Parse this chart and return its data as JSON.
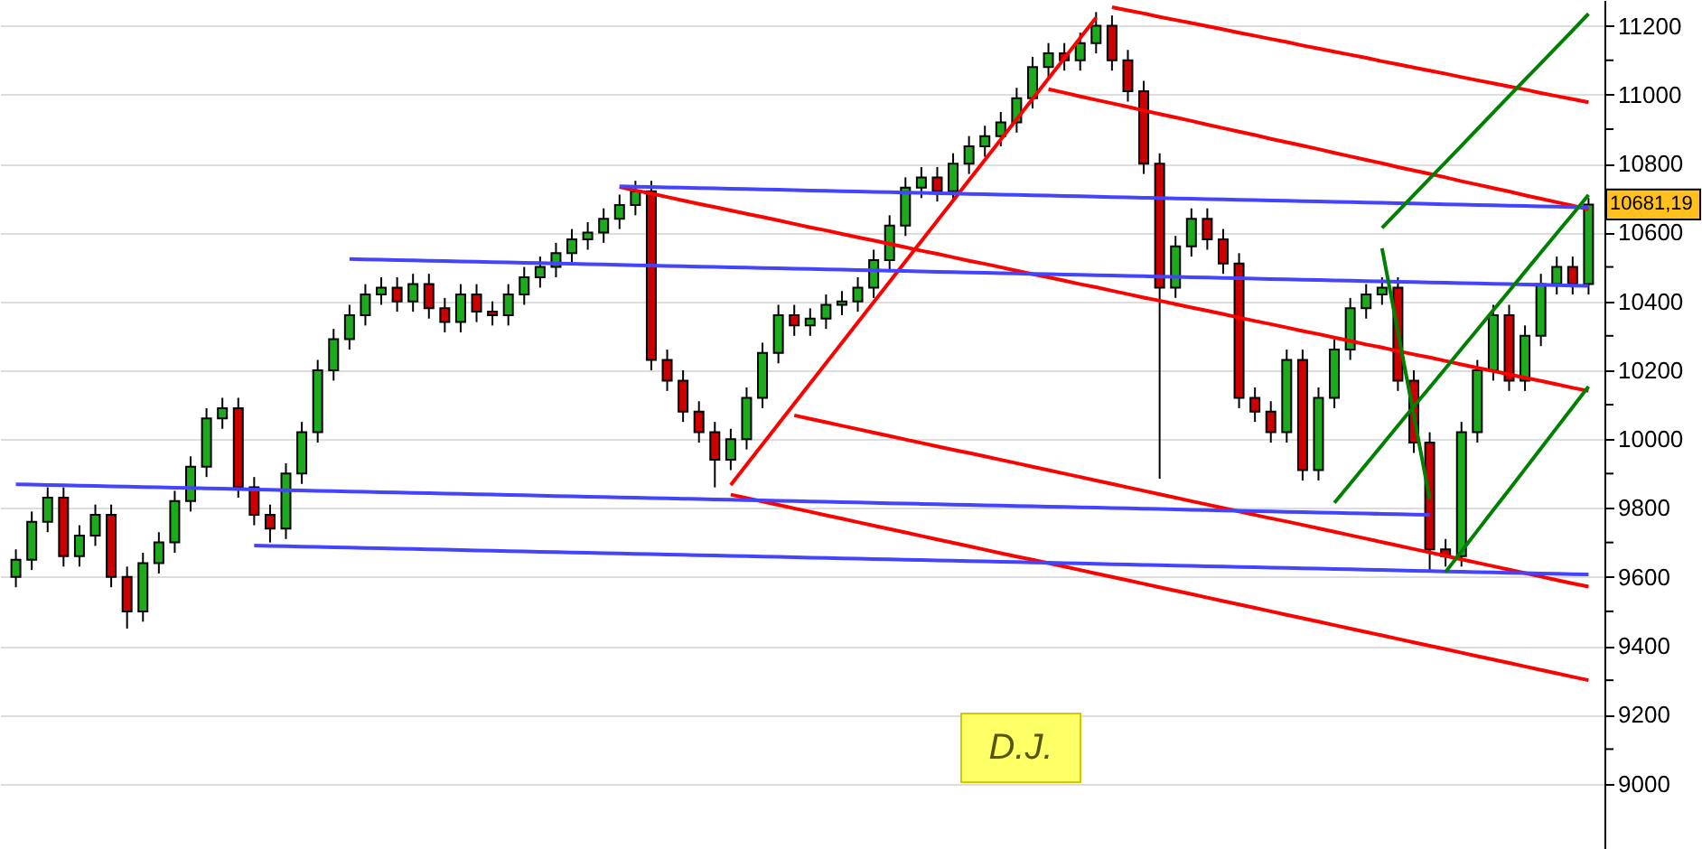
{
  "chart_data": {
    "type": "candlestick",
    "categories": [
      null,
      null,
      null,
      null,
      null,
      null,
      null,
      null,
      null,
      null,
      null,
      null,
      null,
      null,
      null,
      null,
      null,
      null,
      null,
      null,
      null,
      null,
      null,
      null,
      null,
      null,
      null,
      null,
      null,
      null,
      null,
      null,
      null,
      null,
      null,
      null,
      null,
      null,
      null,
      null,
      null,
      null,
      null,
      null,
      null,
      null,
      null,
      null,
      null,
      null,
      null,
      null,
      null,
      null,
      null,
      null,
      null,
      null,
      null,
      null,
      null,
      null,
      null,
      null,
      null,
      null,
      null,
      null,
      null,
      null,
      null,
      null,
      null,
      null,
      null,
      null,
      null,
      null,
      null,
      null,
      null,
      null,
      null,
      null,
      null,
      null,
      null,
      null,
      null,
      null,
      null,
      null,
      null,
      null,
      null,
      null,
      null,
      null,
      null,
      null
    ],
    "ohlc": [
      [
        9600,
        9680,
        9570,
        9650
      ],
      [
        9650,
        9790,
        9620,
        9760
      ],
      [
        9760,
        9860,
        9730,
        9830
      ],
      [
        9830,
        9860,
        9630,
        9660
      ],
      [
        9660,
        9750,
        9630,
        9720
      ],
      [
        9720,
        9810,
        9690,
        9780
      ],
      [
        9780,
        9810,
        9570,
        9600
      ],
      [
        9600,
        9630,
        9450,
        9500
      ],
      [
        9500,
        9670,
        9470,
        9640
      ],
      [
        9640,
        9730,
        9610,
        9700
      ],
      [
        9700,
        9850,
        9670,
        9820
      ],
      [
        9820,
        9950,
        9790,
        9920
      ],
      [
        9920,
        10090,
        9890,
        10060
      ],
      [
        10060,
        10120,
        10030,
        10090
      ],
      [
        10090,
        10120,
        9830,
        9860
      ],
      [
        9860,
        9890,
        9750,
        9780
      ],
      [
        9780,
        9810,
        9700,
        9740
      ],
      [
        9740,
        9930,
        9710,
        9900
      ],
      [
        9900,
        10050,
        9870,
        10020
      ],
      [
        10020,
        10230,
        9990,
        10200
      ],
      [
        10200,
        10320,
        10170,
        10290
      ],
      [
        10290,
        10390,
        10260,
        10360
      ],
      [
        10360,
        10450,
        10330,
        10420
      ],
      [
        10420,
        10470,
        10390,
        10440
      ],
      [
        10440,
        10470,
        10370,
        10400
      ],
      [
        10400,
        10480,
        10370,
        10450
      ],
      [
        10450,
        10480,
        10350,
        10380
      ],
      [
        10380,
        10410,
        10310,
        10340
      ],
      [
        10340,
        10450,
        10310,
        10420
      ],
      [
        10420,
        10450,
        10340,
        10370
      ],
      [
        10370,
        10400,
        10330,
        10360
      ],
      [
        10360,
        10450,
        10330,
        10420
      ],
      [
        10420,
        10500,
        10390,
        10470
      ],
      [
        10470,
        10530,
        10440,
        10500
      ],
      [
        10500,
        10570,
        10470,
        10540
      ],
      [
        10540,
        10610,
        10510,
        10580
      ],
      [
        10580,
        10630,
        10550,
        10600
      ],
      [
        10600,
        10670,
        10570,
        10640
      ],
      [
        10640,
        10710,
        10610,
        10680
      ],
      [
        10680,
        10750,
        10650,
        10720
      ],
      [
        10720,
        10750,
        10200,
        10230
      ],
      [
        10230,
        10260,
        10140,
        10170
      ],
      [
        10170,
        10200,
        10050,
        10080
      ],
      [
        10080,
        10110,
        9990,
        10020
      ],
      [
        10020,
        10050,
        9860,
        9940
      ],
      [
        9940,
        10030,
        9910,
        10000
      ],
      [
        10000,
        10150,
        9970,
        10120
      ],
      [
        10120,
        10280,
        10090,
        10250
      ],
      [
        10250,
        10390,
        10220,
        10360
      ],
      [
        10360,
        10390,
        10300,
        10330
      ],
      [
        10330,
        10380,
        10300,
        10350
      ],
      [
        10350,
        10420,
        10320,
        10390
      ],
      [
        10390,
        10430,
        10360,
        10400
      ],
      [
        10400,
        10470,
        10370,
        10440
      ],
      [
        10440,
        10550,
        10410,
        10520
      ],
      [
        10520,
        10650,
        10490,
        10620
      ],
      [
        10620,
        10760,
        10590,
        10730
      ],
      [
        10730,
        10790,
        10700,
        10760
      ],
      [
        10760,
        10790,
        10690,
        10720
      ],
      [
        10720,
        10830,
        10690,
        10800
      ],
      [
        10800,
        10880,
        10770,
        10850
      ],
      [
        10850,
        10910,
        10820,
        10880
      ],
      [
        10880,
        10950,
        10850,
        10920
      ],
      [
        10920,
        11020,
        10890,
        10990
      ],
      [
        10990,
        11110,
        10960,
        11080
      ],
      [
        11080,
        11150,
        11050,
        11120
      ],
      [
        11120,
        11150,
        11070,
        11100
      ],
      [
        11100,
        11180,
        11070,
        11150
      ],
      [
        11150,
        11240,
        11120,
        11200
      ],
      [
        11200,
        11230,
        11070,
        11100
      ],
      [
        11100,
        11130,
        10980,
        11010
      ],
      [
        11010,
        11040,
        10770,
        10800
      ],
      [
        10800,
        10830,
        9885,
        10440
      ],
      [
        10440,
        10590,
        10410,
        10560
      ],
      [
        10560,
        10670,
        10530,
        10640
      ],
      [
        10640,
        10670,
        10550,
        10580
      ],
      [
        10580,
        10610,
        10480,
        10510
      ],
      [
        10510,
        10540,
        10090,
        10120
      ],
      [
        10120,
        10150,
        10050,
        10080
      ],
      [
        10080,
        10110,
        9990,
        10020
      ],
      [
        10020,
        10260,
        9990,
        10230
      ],
      [
        10230,
        10260,
        9880,
        9910
      ],
      [
        9910,
        10150,
        9880,
        10120
      ],
      [
        10120,
        10290,
        10090,
        10260
      ],
      [
        10260,
        10410,
        10230,
        10380
      ],
      [
        10380,
        10450,
        10350,
        10420
      ],
      [
        10420,
        10470,
        10390,
        10440
      ],
      [
        10440,
        10470,
        10140,
        10170
      ],
      [
        10170,
        10200,
        9960,
        9990
      ],
      [
        9990,
        10020,
        9620,
        9680
      ],
      [
        9680,
        9710,
        9630,
        9660
      ],
      [
        9660,
        10050,
        9630,
        10020
      ],
      [
        10020,
        10230,
        9990,
        10200
      ],
      [
        10200,
        10390,
        10170,
        10360
      ],
      [
        10360,
        10390,
        10140,
        10170
      ],
      [
        10170,
        10330,
        10140,
        10300
      ],
      [
        10300,
        10480,
        10270,
        10450
      ],
      [
        10450,
        10530,
        10420,
        10500
      ],
      [
        10500,
        10530,
        10420,
        10450
      ],
      [
        10450,
        10700,
        10420,
        10681.19
      ]
    ],
    "colors": [
      "#1daa1d",
      "#1daa1d",
      "#1daa1d",
      "#cc0000",
      "#1daa1d",
      "#1daa1d",
      "#cc0000",
      "#cc0000",
      "#1daa1d",
      "#1daa1d",
      "#1daa1d",
      "#1daa1d",
      "#1daa1d",
      "#1daa1d",
      "#cc0000",
      "#cc0000",
      "#cc0000",
      "#1daa1d",
      "#1daa1d",
      "#1daa1d",
      "#1daa1d",
      "#1daa1d",
      "#1daa1d",
      "#1daa1d",
      "#cc0000",
      "#1daa1d",
      "#cc0000",
      "#cc0000",
      "#1daa1d",
      "#cc0000",
      "#cc0000",
      "#1daa1d",
      "#1daa1d",
      "#1daa1d",
      "#1daa1d",
      "#1daa1d",
      "#1daa1d",
      "#1daa1d",
      "#1daa1d",
      "#1daa1d",
      "#cc0000",
      "#cc0000",
      "#cc0000",
      "#cc0000",
      "#cc0000",
      "#1daa1d",
      "#1daa1d",
      "#1daa1d",
      "#1daa1d",
      "#cc0000",
      "#1daa1d",
      "#1daa1d",
      "#1daa1d",
      "#1daa1d",
      "#1daa1d",
      "#1daa1d",
      "#1daa1d",
      "#1daa1d",
      "#cc0000",
      "#1daa1d",
      "#1daa1d",
      "#1daa1d",
      "#1daa1d",
      "#1daa1d",
      "#1daa1d",
      "#1daa1d",
      "#cc0000",
      "#1daa1d",
      "#1daa1d",
      "#cc0000",
      "#cc0000",
      "#cc0000",
      "#cc0000",
      "#1daa1d",
      "#1daa1d",
      "#cc0000",
      "#cc0000",
      "#cc0000",
      "#cc0000",
      "#cc0000",
      "#1daa1d",
      "#cc0000",
      "#1daa1d",
      "#1daa1d",
      "#1daa1d",
      "#1daa1d",
      "#1daa1d",
      "#cc0000",
      "#cc0000",
      "#cc0000",
      "#cc0000",
      "#1daa1d",
      "#1daa1d",
      "#1daa1d",
      "#cc0000",
      "#1daa1d",
      "#1daa1d",
      "#1daa1d",
      "#cc0000",
      "#1daa1d"
    ],
    "series": [
      {
        "type": "line",
        "color": "#ff0000",
        "values": [
          null,
          null,
          null,
          null,
          null,
          null,
          null,
          null,
          null,
          null,
          null,
          null,
          null,
          null,
          null,
          null,
          null,
          null,
          null,
          null,
          null,
          null,
          null,
          null,
          null,
          null,
          null,
          null,
          null,
          null,
          null,
          null,
          null,
          null,
          null,
          null,
          null,
          null,
          null,
          null,
          null,
          null,
          null,
          null,
          null,
          null,
          null,
          null,
          null,
          null,
          null,
          null,
          null,
          null,
          null,
          null,
          null,
          null,
          null,
          null,
          null,
          null,
          null,
          null,
          null,
          null,
          null,
          null,
          null,
          11254,
          11245,
          11236,
          11226,
          11217,
          11208,
          11199,
          11190,
          11180,
          11171,
          11162,
          11153,
          11143,
          11134,
          11125,
          11116,
          11107,
          11097,
          11088,
          11079,
          11070,
          11061,
          11051,
          11042,
          11033,
          11024,
          11015,
          11005,
          10996,
          10987,
          10978
        ]
      },
      {
        "type": "line",
        "color": "#ff0000",
        "values": [
          null,
          null,
          null,
          null,
          null,
          null,
          null,
          null,
          null,
          null,
          null,
          null,
          null,
          null,
          null,
          null,
          null,
          null,
          null,
          null,
          null,
          null,
          null,
          null,
          null,
          null,
          null,
          null,
          null,
          null,
          null,
          null,
          null,
          null,
          null,
          null,
          null,
          null,
          null,
          null,
          null,
          null,
          null,
          null,
          null,
          null,
          null,
          null,
          null,
          null,
          null,
          null,
          null,
          null,
          null,
          null,
          null,
          null,
          null,
          null,
          null,
          null,
          null,
          null,
          null,
          11016,
          11006,
          10995,
          10985,
          10975,
          10965,
          10954,
          10944,
          10934,
          10924,
          10913,
          10903,
          10893,
          10883,
          10872,
          10862,
          10852,
          10842,
          10831,
          10821,
          10811,
          10801,
          10790,
          10780,
          10770,
          10760,
          10749,
          10739,
          10729,
          10719,
          10708,
          10698,
          10688,
          10678,
          10667
        ]
      },
      {
        "type": "line",
        "color": "#ff0000",
        "values": [
          null,
          null,
          null,
          null,
          null,
          null,
          null,
          null,
          null,
          null,
          null,
          null,
          null,
          null,
          null,
          null,
          null,
          null,
          null,
          null,
          null,
          null,
          null,
          null,
          null,
          null,
          null,
          null,
          null,
          null,
          null,
          null,
          null,
          null,
          null,
          null,
          null,
          null,
          10732,
          10722,
          10713,
          10703,
          10693,
          10683,
          10674,
          10664,
          10654,
          10645,
          10635,
          10625,
          10615,
          10606,
          10596,
          10586,
          10577,
          10567,
          10557,
          10547,
          10538,
          10528,
          10518,
          10509,
          10499,
          10489,
          10479,
          10470,
          10460,
          10450,
          10441,
          10431,
          10421,
          10411,
          10402,
          10392,
          10382,
          10373,
          10363,
          10353,
          10343,
          10334,
          10324,
          10314,
          10305,
          10295,
          10285,
          10275,
          10266,
          10256,
          10246,
          10237,
          10227,
          10217,
          10207,
          10198,
          10188,
          10178,
          10169,
          10159,
          10149,
          10140
        ]
      },
      {
        "type": "line",
        "color": "#ff0000",
        "values": [
          null,
          null,
          null,
          null,
          null,
          null,
          null,
          null,
          null,
          null,
          null,
          null,
          null,
          null,
          null,
          null,
          null,
          null,
          null,
          null,
          null,
          null,
          null,
          null,
          null,
          null,
          null,
          null,
          null,
          null,
          null,
          null,
          null,
          null,
          null,
          null,
          null,
          null,
          null,
          null,
          null,
          null,
          null,
          null,
          null,
          null,
          null,
          null,
          null,
          10069,
          10059,
          10049,
          10039,
          10029,
          10019,
          10009,
          9999,
          9989,
          9979,
          9969,
          9960,
          9950,
          9940,
          9930,
          9920,
          9910,
          9900,
          9890,
          9880,
          9870,
          9860,
          9850,
          9840,
          9830,
          9820,
          9810,
          9800,
          9790,
          9780,
          9770,
          9761,
          9751,
          9741,
          9731,
          9721,
          9711,
          9701,
          9691,
          9681,
          9671,
          9661,
          9651,
          9641,
          9631,
          9621,
          9611,
          9601,
          9591,
          9581,
          9572
        ]
      },
      {
        "type": "line",
        "color": "#ff0000",
        "values": [
          null,
          null,
          null,
          null,
          null,
          null,
          null,
          null,
          null,
          null,
          null,
          null,
          null,
          null,
          null,
          null,
          null,
          null,
          null,
          null,
          null,
          null,
          null,
          null,
          null,
          null,
          null,
          null,
          null,
          null,
          null,
          null,
          null,
          null,
          null,
          null,
          null,
          null,
          null,
          null,
          null,
          null,
          null,
          null,
          null,
          9839,
          9829,
          9819,
          9809,
          9799,
          9789,
          9779,
          9769,
          9759,
          9749,
          9739,
          9729,
          9719,
          9709,
          9699,
          9689,
          9679,
          9669,
          9659,
          9650,
          9640,
          9630,
          9620,
          9610,
          9600,
          9590,
          9580,
          9570,
          9560,
          9550,
          9540,
          9530,
          9520,
          9510,
          9500,
          9490,
          9480,
          9470,
          9460,
          9450,
          9440,
          9430,
          9420,
          9410,
          9400,
          9390,
          9380,
          9370,
          9360,
          9350,
          9340,
          9330,
          9320,
          9310,
          9300
        ]
      },
      {
        "type": "line",
        "color": "#ff0000",
        "values": [
          null,
          null,
          null,
          null,
          null,
          null,
          null,
          null,
          null,
          null,
          null,
          null,
          null,
          null,
          null,
          null,
          null,
          null,
          null,
          null,
          null,
          null,
          null,
          null,
          null,
          null,
          null,
          null,
          null,
          null,
          null,
          null,
          null,
          null,
          null,
          null,
          null,
          null,
          null,
          null,
          null,
          null,
          null,
          null,
          null,
          9867,
          9926,
          9985,
          10044,
          10103,
          10162,
          10221,
          10280,
          10339,
          10398,
          10457,
          10516,
          10575,
          10634,
          10693,
          10752,
          10811,
          10870,
          10929,
          10988,
          11047,
          11106,
          11165,
          11224,
          null,
          null,
          null,
          null,
          null,
          null,
          null,
          null,
          null,
          null,
          null,
          null,
          null,
          null,
          null,
          null,
          null,
          null,
          null,
          null,
          null,
          null,
          null,
          null,
          null,
          null,
          null,
          null,
          null,
          null,
          null
        ]
      },
      {
        "type": "line",
        "color": "#4444ff",
        "values": [
          null,
          null,
          null,
          null,
          null,
          null,
          null,
          null,
          null,
          null,
          null,
          null,
          null,
          null,
          null,
          null,
          null,
          null,
          null,
          null,
          null,
          null,
          null,
          null,
          null,
          null,
          null,
          null,
          null,
          null,
          null,
          null,
          null,
          null,
          null,
          null,
          null,
          null,
          10734,
          10733,
          10732,
          10731,
          10730,
          10729,
          10728,
          10727,
          10726,
          10725,
          10724,
          10723,
          10722,
          10721,
          10720,
          10719,
          10718,
          10717,
          10716,
          10715,
          10714,
          10713,
          10712,
          10711,
          10710,
          10709,
          10708,
          10707,
          10706,
          10705,
          10704,
          10703,
          10702,
          10701,
          10700,
          10699,
          10698,
          10697,
          10696,
          10695,
          10694,
          10693,
          10692,
          10691,
          10690,
          10689,
          10688,
          10687,
          10686,
          10685,
          10684,
          10683,
          10682,
          10681,
          10680,
          10679,
          10678,
          10677,
          10676,
          10675,
          10674,
          10673
        ]
      },
      {
        "type": "line",
        "color": "#4444ff",
        "values": [
          null,
          null,
          null,
          null,
          null,
          null,
          null,
          null,
          null,
          null,
          null,
          null,
          null,
          null,
          null,
          null,
          null,
          null,
          null,
          null,
          null,
          10523,
          10522,
          10521,
          10520,
          10519,
          10518,
          10517,
          10516,
          10515,
          10514,
          10513,
          10512,
          10511,
          10510,
          10509,
          10508,
          10507,
          10506,
          10505,
          10504,
          10503,
          10502,
          10501,
          10500,
          10499,
          10498,
          10497,
          10496,
          10495,
          10494,
          10493,
          10492,
          10491,
          10490,
          10489,
          10488,
          10487,
          10486,
          10485,
          10484,
          10483,
          10482,
          10481,
          10480,
          10479,
          10478,
          10477,
          10476,
          10475,
          10474,
          10473,
          10472,
          10471,
          10470,
          10469,
          10468,
          10467,
          10466,
          10465,
          10464,
          10463,
          10462,
          10461,
          10460,
          10459,
          10458,
          10457,
          10456,
          10455,
          10454,
          10453,
          10452,
          10451,
          10450,
          10449,
          10448,
          10447,
          10446,
          10445
        ]
      },
      {
        "type": "line",
        "color": "#4444ff",
        "values": [
          9869,
          9868,
          9867,
          9866,
          9865,
          9864,
          9863,
          9862,
          9861,
          9860,
          9859,
          9858,
          9857,
          9856,
          9855,
          9854,
          9853,
          9852,
          9851,
          9850,
          9849,
          9848,
          9847,
          9846,
          9845,
          9844,
          9843,
          9842,
          9841,
          9840,
          9839,
          9838,
          9837,
          9836,
          9835,
          9834,
          9833,
          9832,
          9831,
          9830,
          9829,
          9828,
          9827,
          9826,
          9825,
          9824,
          9823,
          9822,
          9821,
          9820,
          9819,
          9818,
          9817,
          9816,
          9815,
          9814,
          9813,
          9812,
          9811,
          9810,
          9809,
          9808,
          9807,
          9806,
          9805,
          9804,
          9803,
          9802,
          9801,
          9800,
          9799,
          9798,
          9797,
          9796,
          9795,
          9794,
          9793,
          9792,
          9791,
          9790,
          9789,
          9788,
          9787,
          9786,
          9785,
          9784,
          9783,
          9782,
          9781,
          9780,
          null,
          null,
          null,
          null,
          null,
          null,
          null,
          null,
          null,
          null
        ]
      },
      {
        "type": "line",
        "color": "#4444ff",
        "values": [
          null,
          null,
          null,
          null,
          null,
          null,
          null,
          null,
          null,
          null,
          null,
          null,
          null,
          null,
          null,
          9691,
          9690,
          9689,
          9688,
          9687,
          9686,
          9685,
          9684,
          9683,
          9682,
          9681,
          9680,
          9679,
          9678,
          9677,
          9676,
          9675,
          9674,
          9673,
          9672,
          9671,
          9670,
          9669,
          9668,
          9667,
          9666,
          9665,
          9664,
          9663,
          9662,
          9661,
          9660,
          9659,
          9658,
          9657,
          9656,
          9655,
          9654,
          9653,
          9652,
          9651,
          9650,
          9649,
          9648,
          9647,
          9646,
          9645,
          9644,
          9643,
          9642,
          9641,
          9640,
          9639,
          9638,
          9637,
          9636,
          9635,
          9634,
          9633,
          9632,
          9631,
          9630,
          9629,
          9628,
          9627,
          9626,
          9625,
          9624,
          9623,
          9622,
          9621,
          9620,
          9619,
          9618,
          9617,
          9616,
          9615,
          9614,
          9613,
          9612,
          9611,
          9610,
          9609,
          9608,
          9607
        ]
      },
      {
        "type": "line",
        "color": "#008000",
        "values": [
          null,
          null,
          null,
          null,
          null,
          null,
          null,
          null,
          null,
          null,
          null,
          null,
          null,
          null,
          null,
          null,
          null,
          null,
          null,
          null,
          null,
          null,
          null,
          null,
          null,
          null,
          null,
          null,
          null,
          null,
          null,
          null,
          null,
          null,
          null,
          null,
          null,
          null,
          null,
          null,
          null,
          null,
          null,
          null,
          null,
          null,
          null,
          null,
          null,
          null,
          null,
          null,
          null,
          null,
          null,
          null,
          null,
          null,
          null,
          null,
          null,
          null,
          null,
          null,
          null,
          null,
          null,
          null,
          null,
          null,
          null,
          null,
          null,
          null,
          null,
          null,
          null,
          null,
          null,
          null,
          null,
          null,
          null,
          null,
          null,
          null,
          10613,
          10661,
          10709,
          10757,
          10804,
          10852,
          10900,
          10948,
          10996,
          11044,
          11091,
          11139,
          11187,
          11235
        ]
      },
      {
        "type": "line",
        "color": "#008000",
        "values": [
          null,
          null,
          null,
          null,
          null,
          null,
          null,
          null,
          null,
          null,
          null,
          null,
          null,
          null,
          null,
          null,
          null,
          null,
          null,
          null,
          null,
          null,
          null,
          null,
          null,
          null,
          null,
          null,
          null,
          null,
          null,
          null,
          null,
          null,
          null,
          null,
          null,
          null,
          null,
          null,
          null,
          null,
          null,
          null,
          null,
          null,
          null,
          null,
          null,
          null,
          null,
          null,
          null,
          null,
          null,
          null,
          null,
          null,
          null,
          null,
          null,
          null,
          null,
          null,
          null,
          null,
          null,
          null,
          null,
          null,
          null,
          null,
          null,
          null,
          null,
          null,
          null,
          null,
          null,
          null,
          null,
          null,
          null,
          9815,
          9871,
          9927,
          9983,
          10039,
          10095,
          10150,
          10206,
          10262,
          10318,
          10374,
          10430,
          10486,
          10542,
          10598,
          10653,
          10709
        ]
      },
      {
        "type": "line",
        "color": "#008000",
        "values": [
          null,
          null,
          null,
          null,
          null,
          null,
          null,
          null,
          null,
          null,
          null,
          null,
          null,
          null,
          null,
          null,
          null,
          null,
          null,
          null,
          null,
          null,
          null,
          null,
          null,
          null,
          null,
          null,
          null,
          null,
          null,
          null,
          null,
          null,
          null,
          null,
          null,
          null,
          null,
          null,
          null,
          null,
          null,
          null,
          null,
          null,
          null,
          null,
          null,
          null,
          null,
          null,
          null,
          null,
          null,
          null,
          null,
          null,
          null,
          null,
          null,
          null,
          null,
          null,
          null,
          null,
          null,
          null,
          null,
          null,
          null,
          null,
          null,
          null,
          null,
          null,
          null,
          null,
          null,
          null,
          null,
          null,
          null,
          null,
          null,
          null,
          null,
          null,
          null,
          null,
          9614,
          9674,
          9734,
          9794,
          9853,
          9913,
          9973,
          10033,
          10093,
          10153
        ]
      },
      {
        "type": "line",
        "color": "#008000",
        "values": [
          null,
          null,
          null,
          null,
          null,
          null,
          null,
          null,
          null,
          null,
          null,
          null,
          null,
          null,
          null,
          null,
          null,
          null,
          null,
          null,
          null,
          null,
          null,
          null,
          null,
          null,
          null,
          null,
          null,
          null,
          null,
          null,
          null,
          null,
          null,
          null,
          null,
          null,
          null,
          null,
          null,
          null,
          null,
          null,
          null,
          null,
          null,
          null,
          null,
          null,
          null,
          null,
          null,
          null,
          null,
          null,
          null,
          null,
          null,
          null,
          null,
          null,
          null,
          null,
          null,
          null,
          null,
          null,
          null,
          null,
          null,
          null,
          null,
          null,
          null,
          null,
          null,
          null,
          null,
          null,
          null,
          null,
          null,
          null,
          null,
          null,
          10554,
          10312,
          10069,
          9826,
          null,
          null,
          null,
          null,
          null,
          null,
          null,
          null,
          null,
          null
        ]
      }
    ],
    "ylim": [
      8810,
      11275
    ],
    "yticks": [
      9000,
      {
        "value": 9100,
        "label": null
      },
      9200,
      {
        "value": 9300,
        "label": null
      },
      9400,
      {
        "value": 9500,
        "label": null
      },
      9600,
      {
        "value": 9700,
        "label": null
      },
      9800,
      {
        "value": 9900,
        "label": null
      },
      10000,
      {
        "value": 10100,
        "label": null
      },
      10200,
      {
        "value": 10300,
        "label": null
      },
      10400,
      {
        "value": 10500,
        "label": null
      },
      10600,
      {
        "value": 10700,
        "label": null
      },
      10800,
      {
        "value": 10900,
        "label": null
      },
      11000,
      {
        "value": 11100,
        "label": null
      },
      11200
    ],
    "grid": "y",
    "tick_labels": "y",
    "annotations": [
      "D.J.",
      "10681,19"
    ]
  }
}
